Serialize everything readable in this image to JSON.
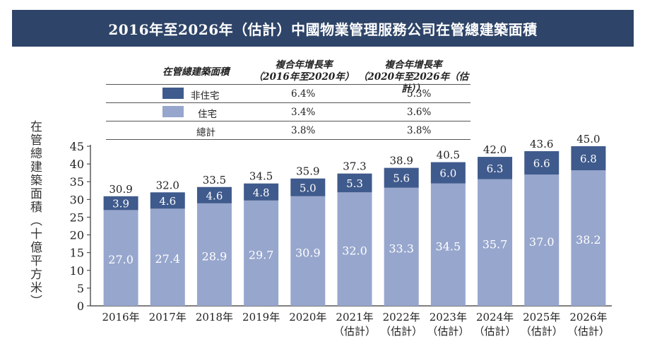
{
  "title": "2016年至2026年（估計）中國物業管理服務公司在管總建築面積",
  "legend_table": {
    "header": {
      "col0": "在管總建築面積",
      "col1_line1": "複合年增長率",
      "col1_line2": "（2016年至2020年）",
      "col2_line1": "複合年增長率",
      "col2_line2": "（2020年至2026年（估計））"
    },
    "rows": [
      {
        "label": "非住宅",
        "cagr1": "6.4%",
        "cagr2": "5.3%",
        "color": "#3f5a8c"
      },
      {
        "label": "住宅",
        "cagr1": "3.4%",
        "cagr2": "3.6%",
        "color": "#97a6cd"
      },
      {
        "label": "總計",
        "cagr1": "3.8%",
        "cagr2": "3.8%"
      }
    ]
  },
  "chart_data": {
    "type": "bar",
    "stacked": true,
    "ylabel": "在管總建築面積（十億平方米）",
    "ylim": [
      0,
      45
    ],
    "yticks": [
      0,
      5,
      10,
      15,
      20,
      25,
      30,
      35,
      40,
      45
    ],
    "categories": [
      "2016年",
      "2017年",
      "2018年",
      "2019年",
      "2020年",
      "2021年",
      "2022年",
      "2023年",
      "2024年",
      "2025年",
      "2026年"
    ],
    "category_sublabels": [
      "",
      "",
      "",
      "",
      "",
      "（估計）",
      "（估計）",
      "（估計）",
      "（估計）",
      "（估計）",
      "（估計）"
    ],
    "series": [
      {
        "name": "住宅",
        "color": "#97a6cd",
        "values": [
          27.0,
          27.4,
          28.9,
          29.7,
          30.9,
          32.0,
          33.3,
          34.5,
          35.7,
          37.0,
          38.2
        ]
      },
      {
        "name": "非住宅",
        "color": "#3f5a8c",
        "values": [
          3.9,
          4.6,
          4.6,
          4.8,
          5.0,
          5.3,
          5.6,
          6.0,
          6.3,
          6.6,
          6.8
        ]
      }
    ],
    "totals": [
      30.9,
      32.0,
      33.5,
      34.5,
      35.9,
      37.3,
      38.9,
      40.5,
      42.0,
      43.6,
      45.0
    ],
    "grid": false,
    "legend": "table-top"
  }
}
